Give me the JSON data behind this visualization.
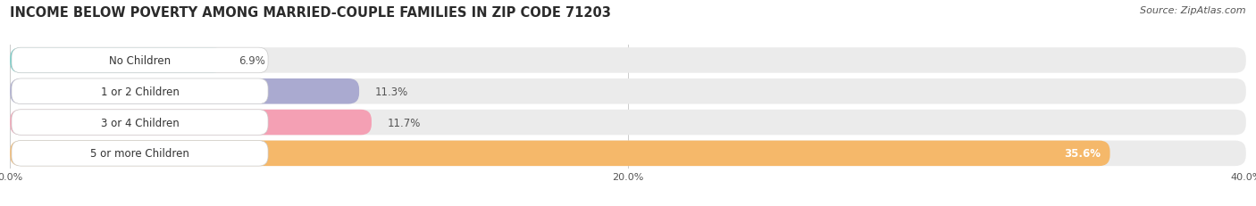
{
  "title": "INCOME BELOW POVERTY AMONG MARRIED-COUPLE FAMILIES IN ZIP CODE 71203",
  "source": "Source: ZipAtlas.com",
  "categories": [
    "No Children",
    "1 or 2 Children",
    "3 or 4 Children",
    "5 or more Children"
  ],
  "values": [
    6.9,
    11.3,
    11.7,
    35.6
  ],
  "bar_colors": [
    "#6DCDC7",
    "#AAAAD0",
    "#F4A0B4",
    "#F5B86A"
  ],
  "bar_bg_color": "#EBEBEB",
  "label_box_color": "#FFFFFF",
  "label_box_edge_color": "#CCCCCC",
  "xlim": [
    0,
    40
  ],
  "xticks": [
    0.0,
    20.0,
    40.0
  ],
  "xtick_labels": [
    "0.0%",
    "20.0%",
    "40.0%"
  ],
  "title_fontsize": 10.5,
  "source_fontsize": 8,
  "bar_label_fontsize": 8.5,
  "value_fontsize": 8.5,
  "tick_fontsize": 8,
  "background_color": "#FFFFFF",
  "grid_color": "#CCCCCC"
}
